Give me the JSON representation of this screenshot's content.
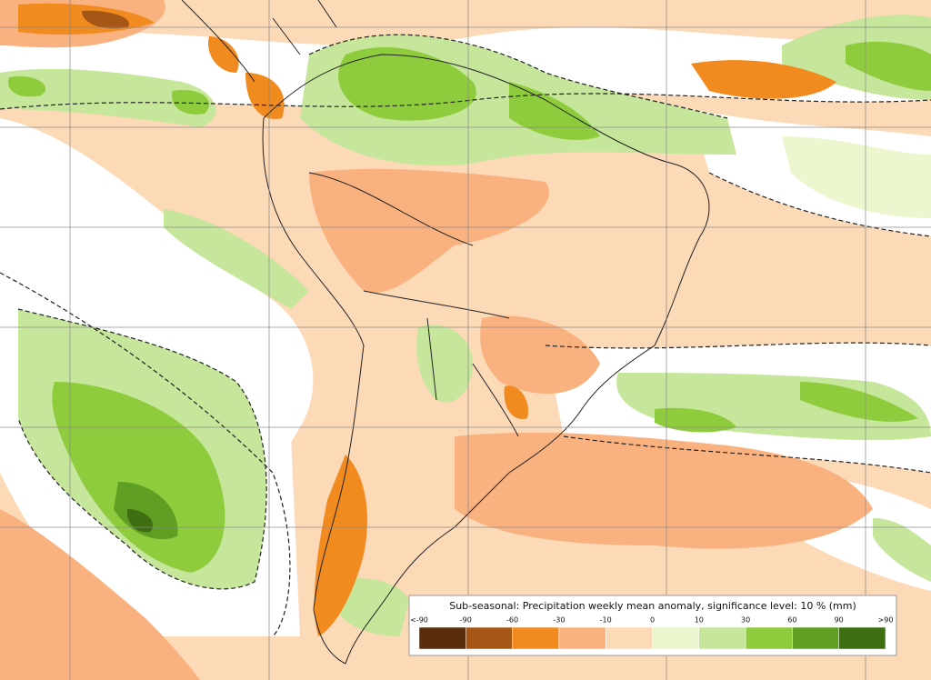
{
  "legend": {
    "title": "Sub-seasonal: Precipitation weekly mean anomaly, significance level: 10 % (mm)",
    "labels": [
      "<-90",
      "-90",
      "-60",
      "-30",
      "-10",
      "0",
      "10",
      "30",
      "60",
      "90",
      ">90"
    ],
    "colors": [
      "#5a2d0c",
      "#a65716",
      "#f18a1f",
      "#f9b27f",
      "#fcd9b7",
      "#ecf7cf",
      "#c6e69b",
      "#8fcc3d",
      "#5e9e22",
      "#3f6e12"
    ]
  }
}
